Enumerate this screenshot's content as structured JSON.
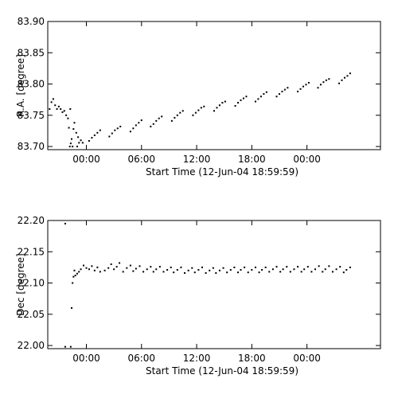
{
  "chart_data": [
    {
      "type": "scatter",
      "xlabel": "Start Time (12-Jun-04 18:59:59)",
      "ylabel": "R.A. [degree]",
      "xticks": [
        "00:00",
        "06:00",
        "12:00",
        "18:00",
        "00:00"
      ],
      "yticks": [
        "83.70",
        "83.75",
        "83.80",
        "83.85",
        "83.90"
      ],
      "ylim": [
        83.695,
        83.9
      ],
      "xlim_hours": [
        -4.2,
        32.0
      ],
      "series": [
        {
          "x": [
            -4.0,
            -3.8,
            -3.6,
            -3.4,
            -3.2,
            -3.0,
            -2.8,
            -2.6,
            -2.4,
            -2.2,
            -2.0,
            -1.9,
            -1.8,
            -1.75,
            -1.7,
            -1.6,
            -1.5,
            -1.4,
            -1.3,
            -1.1,
            -1.0,
            -0.9,
            -0.8,
            -0.6,
            -0.4,
            0.3,
            0.6,
            0.9,
            1.2,
            1.5,
            2.5,
            2.8,
            3.1,
            3.4,
            3.7,
            4.8,
            5.1,
            5.4,
            5.7,
            6.0,
            7.0,
            7.3,
            7.6,
            7.9,
            8.2,
            9.3,
            9.6,
            9.9,
            10.2,
            10.5,
            11.6,
            11.9,
            12.2,
            12.5,
            12.8,
            13.9,
            14.2,
            14.5,
            14.8,
            15.1,
            16.2,
            16.5,
            16.8,
            17.1,
            17.4,
            18.4,
            18.7,
            19.0,
            19.3,
            19.6,
            20.7,
            21.0,
            21.3,
            21.6,
            21.9,
            23.0,
            23.3,
            23.6,
            23.9,
            24.2,
            25.2,
            25.5,
            25.8,
            26.1,
            26.4,
            27.5,
            27.8,
            28.1,
            28.4,
            28.7
          ],
          "y": [
            83.76,
            83.771,
            83.776,
            83.766,
            83.76,
            83.764,
            83.76,
            83.755,
            83.757,
            83.75,
            83.745,
            83.73,
            83.7,
            83.76,
            83.705,
            83.712,
            83.7,
            83.728,
            83.738,
            83.722,
            83.7,
            83.715,
            83.706,
            83.71,
            83.706,
            83.709,
            83.714,
            83.718,
            83.722,
            83.726,
            83.716,
            83.721,
            83.726,
            83.729,
            83.732,
            83.724,
            83.729,
            83.734,
            83.738,
            83.742,
            83.732,
            83.736,
            83.741,
            83.745,
            83.748,
            83.741,
            83.746,
            83.75,
            83.754,
            83.757,
            83.75,
            83.754,
            83.758,
            83.762,
            83.764,
            83.757,
            83.762,
            83.766,
            83.77,
            83.772,
            83.765,
            83.77,
            83.774,
            83.777,
            83.78,
            83.772,
            83.776,
            83.78,
            83.784,
            83.787,
            83.78,
            83.784,
            83.788,
            83.791,
            83.794,
            83.788,
            83.792,
            83.796,
            83.799,
            83.802,
            83.794,
            83.799,
            83.803,
            83.806,
            83.808,
            83.801,
            83.806,
            83.81,
            83.813,
            83.817
          ]
        }
      ]
    },
    {
      "type": "scatter",
      "xlabel": "Start Time (12-Jun-04 18:59:59)",
      "ylabel": "Dec [degree]",
      "xticks": [
        "00:00",
        "06:00",
        "12:00",
        "18:00",
        "00:00"
      ],
      "yticks": [
        "22.00",
        "22.05",
        "22.10",
        "22.15",
        "22.20"
      ],
      "ylim": [
        21.995,
        22.2
      ],
      "xlim_hours": [
        -4.2,
        32.0
      ],
      "series": [
        {
          "x": [
            -2.3,
            -2.3,
            -1.7,
            -1.6,
            -1.5,
            -1.4,
            -1.3,
            -1.2,
            -1.0,
            -0.8,
            -0.6,
            -0.3,
            0.0,
            0.3,
            0.6,
            0.9,
            1.2,
            1.5,
            2.0,
            2.4,
            2.7,
            3.0,
            3.3,
            3.6,
            4.0,
            4.4,
            4.8,
            5.1,
            5.4,
            5.8,
            6.2,
            6.6,
            7.0,
            7.3,
            7.6,
            8.0,
            8.4,
            8.8,
            9.2,
            9.5,
            9.9,
            10.3,
            10.7,
            11.1,
            11.5,
            11.8,
            12.2,
            12.6,
            13.0,
            13.4,
            13.8,
            14.1,
            14.5,
            14.9,
            15.3,
            15.7,
            16.1,
            16.5,
            16.8,
            17.2,
            17.6,
            18.0,
            18.4,
            18.8,
            19.1,
            19.5,
            19.9,
            20.3,
            20.7,
            21.1,
            21.4,
            21.8,
            22.2,
            22.6,
            23.0,
            23.4,
            23.7,
            24.1,
            24.5,
            24.9,
            25.3,
            25.7,
            26.0,
            26.4,
            26.8,
            27.2,
            27.6,
            28.0,
            28.3,
            28.7
          ],
          "y": [
            21.998,
            22.195,
            21.998,
            22.06,
            22.1,
            22.11,
            22.12,
            22.112,
            22.115,
            22.118,
            22.122,
            22.128,
            22.124,
            22.122,
            22.127,
            22.12,
            22.125,
            22.118,
            22.12,
            22.124,
            22.13,
            22.122,
            22.126,
            22.132,
            22.118,
            22.124,
            22.128,
            22.119,
            22.123,
            22.127,
            22.118,
            22.122,
            22.126,
            22.118,
            22.122,
            22.126,
            22.118,
            22.121,
            22.125,
            22.117,
            22.121,
            22.125,
            22.116,
            22.12,
            22.124,
            22.117,
            22.121,
            22.125,
            22.116,
            22.12,
            22.124,
            22.116,
            22.12,
            22.124,
            22.117,
            22.121,
            22.125,
            22.117,
            22.121,
            22.125,
            22.117,
            22.121,
            22.125,
            22.117,
            22.121,
            22.125,
            22.118,
            22.122,
            22.126,
            22.118,
            22.122,
            22.126,
            22.118,
            22.122,
            22.126,
            22.118,
            22.122,
            22.126,
            22.118,
            22.122,
            22.127,
            22.118,
            22.122,
            22.127,
            22.118,
            22.122,
            22.126,
            22.117,
            22.121,
            22.125
          ]
        }
      ]
    }
  ]
}
